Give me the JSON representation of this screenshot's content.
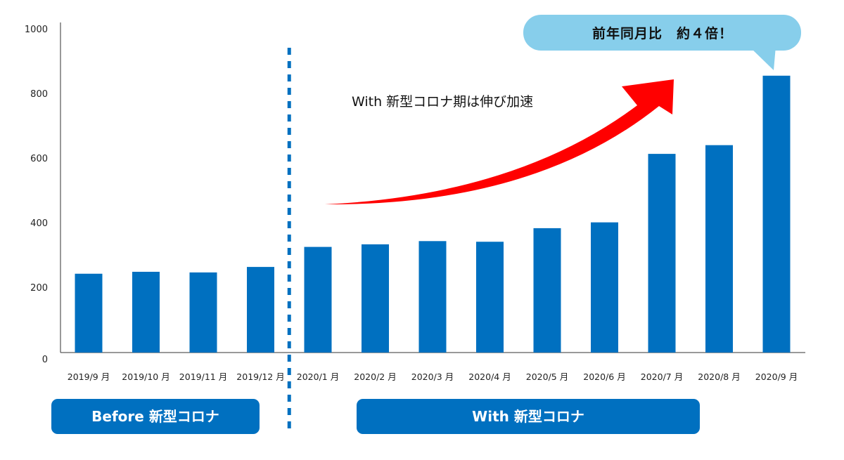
{
  "chart_data": {
    "type": "bar",
    "categories": [
      "2019/9 月",
      "2019/10 月",
      "2019/11 月",
      "2019/12 月",
      "2020/1 月",
      "2020/2 月",
      "2020/3 月",
      "2020/4 月",
      "2020/5 月",
      "2020/6 月",
      "2020/7 月",
      "2020/8 月",
      "2020/9 月"
    ],
    "values": [
      244,
      250,
      248,
      265,
      327,
      335,
      345,
      343,
      385,
      403,
      615,
      642,
      857
    ],
    "ylim": [
      0,
      1000
    ],
    "yticks": [
      "0",
      "200",
      "400",
      "600",
      "800",
      "1000"
    ],
    "ytick_values": [
      0,
      200,
      400,
      600,
      800,
      1000
    ],
    "title": "",
    "xlabel": "",
    "ylabel": "",
    "grid": false,
    "bar_color": "#0070c0",
    "divider_color": "#0070c0",
    "divider_after_index": 3,
    "annotations": {
      "arrow_label": "With 新型コロナ期は伸び加速",
      "arrow_color": "#ff0000",
      "callout": "前年同月比　約４倍！",
      "callout_color": "#87ceeb"
    },
    "periods": [
      {
        "label": "Before 新型コロナ",
        "color": "#0070c0"
      },
      {
        "label": "With 新型コロナ",
        "color": "#0070c0"
      }
    ]
  }
}
